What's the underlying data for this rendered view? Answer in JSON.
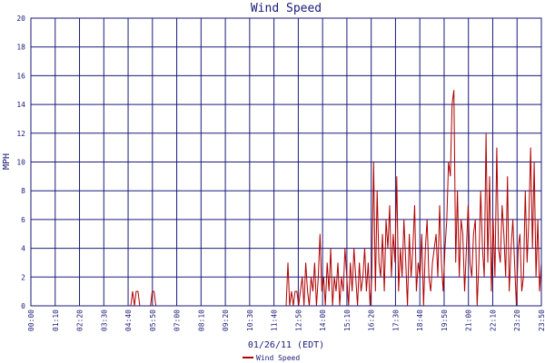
{
  "chart_data": {
    "type": "line",
    "title": "Wind Speed",
    "xlabel": "01/26/11 (EDT)",
    "ylabel": "MPH",
    "ylim": [
      0,
      20
    ],
    "yticks": [
      0,
      2,
      4,
      6,
      8,
      10,
      12,
      14,
      16,
      18,
      20
    ],
    "xlim": [
      "00:00",
      "23:50"
    ],
    "xticks": [
      "00:00",
      "01:10",
      "02:20",
      "03:30",
      "04:40",
      "05:50",
      "07:00",
      "08:10",
      "09:20",
      "10:30",
      "11:40",
      "12:50",
      "14:00",
      "15:10",
      "16:20",
      "17:30",
      "18:40",
      "19:50",
      "21:00",
      "22:10",
      "23:20",
      "23:50"
    ],
    "grid": true,
    "legend_position": "bottom-left",
    "colors": {
      "series": "#b00000",
      "grid": "#1a1a7a",
      "text": "#1a1a7a"
    },
    "series": [
      {
        "name": "Wind Speed",
        "sample_interval_minutes": 5,
        "values": [
          0,
          0,
          0,
          0,
          0,
          0,
          0,
          0,
          0,
          0,
          0,
          0,
          0,
          0,
          0,
          0,
          0,
          0,
          0,
          0,
          0,
          0,
          0,
          0,
          0,
          0,
          0,
          0,
          0,
          0,
          0,
          0,
          0,
          0,
          0,
          0,
          0,
          0,
          0,
          0,
          0,
          0,
          0,
          0,
          0,
          0,
          0,
          0,
          0,
          0,
          0,
          0,
          0,
          0,
          0,
          0,
          0,
          1,
          0,
          1,
          1,
          0,
          0,
          0,
          0,
          0,
          0,
          0,
          1,
          1,
          0,
          0,
          0,
          0,
          0,
          0,
          0,
          0,
          0,
          0,
          0,
          0,
          0,
          0,
          0,
          0,
          0,
          0,
          0,
          0,
          0,
          0,
          0,
          0,
          0,
          0,
          0,
          0,
          0,
          0,
          0,
          0,
          0,
          0,
          0,
          0,
          0,
          0,
          0,
          0,
          0,
          0,
          0,
          0,
          0,
          0,
          0,
          0,
          0,
          0,
          0,
          0,
          0,
          0,
          0,
          0,
          0,
          0,
          0,
          0,
          0,
          0,
          0,
          0,
          0,
          0,
          0,
          0,
          0,
          0,
          0,
          0,
          0,
          0,
          3,
          0,
          1,
          0,
          1,
          1,
          0,
          1,
          2,
          0,
          3,
          1,
          0,
          2,
          1,
          3,
          0,
          2,
          5,
          1,
          2,
          0,
          3,
          1,
          4,
          0,
          2,
          1,
          3,
          0,
          2,
          1,
          4,
          2,
          0,
          3,
          1,
          4,
          2,
          0,
          3,
          1,
          2,
          4,
          1,
          3,
          0,
          2,
          10,
          1,
          8,
          3,
          2,
          5,
          1,
          6,
          4,
          7,
          2,
          5,
          3,
          9,
          1,
          4,
          2,
          6,
          3,
          0,
          5,
          2,
          4,
          7,
          1,
          3,
          2,
          5,
          0,
          4,
          6,
          2,
          1,
          3,
          4,
          5,
          2,
          7,
          3,
          1,
          4,
          6,
          10,
          9,
          14,
          15,
          3,
          8,
          2,
          6,
          5,
          1,
          4,
          7,
          3,
          2,
          5,
          6,
          0,
          3,
          8,
          4,
          2,
          12,
          3,
          9,
          1,
          6,
          2,
          11,
          4,
          3,
          7,
          5,
          2,
          9,
          1,
          4,
          6,
          3,
          0,
          4,
          5,
          1,
          2,
          8,
          3,
          6,
          11,
          4,
          10,
          2,
          6,
          1,
          3,
          4,
          0,
          2,
          1,
          4,
          0,
          0,
          0,
          0
        ]
      }
    ]
  }
}
